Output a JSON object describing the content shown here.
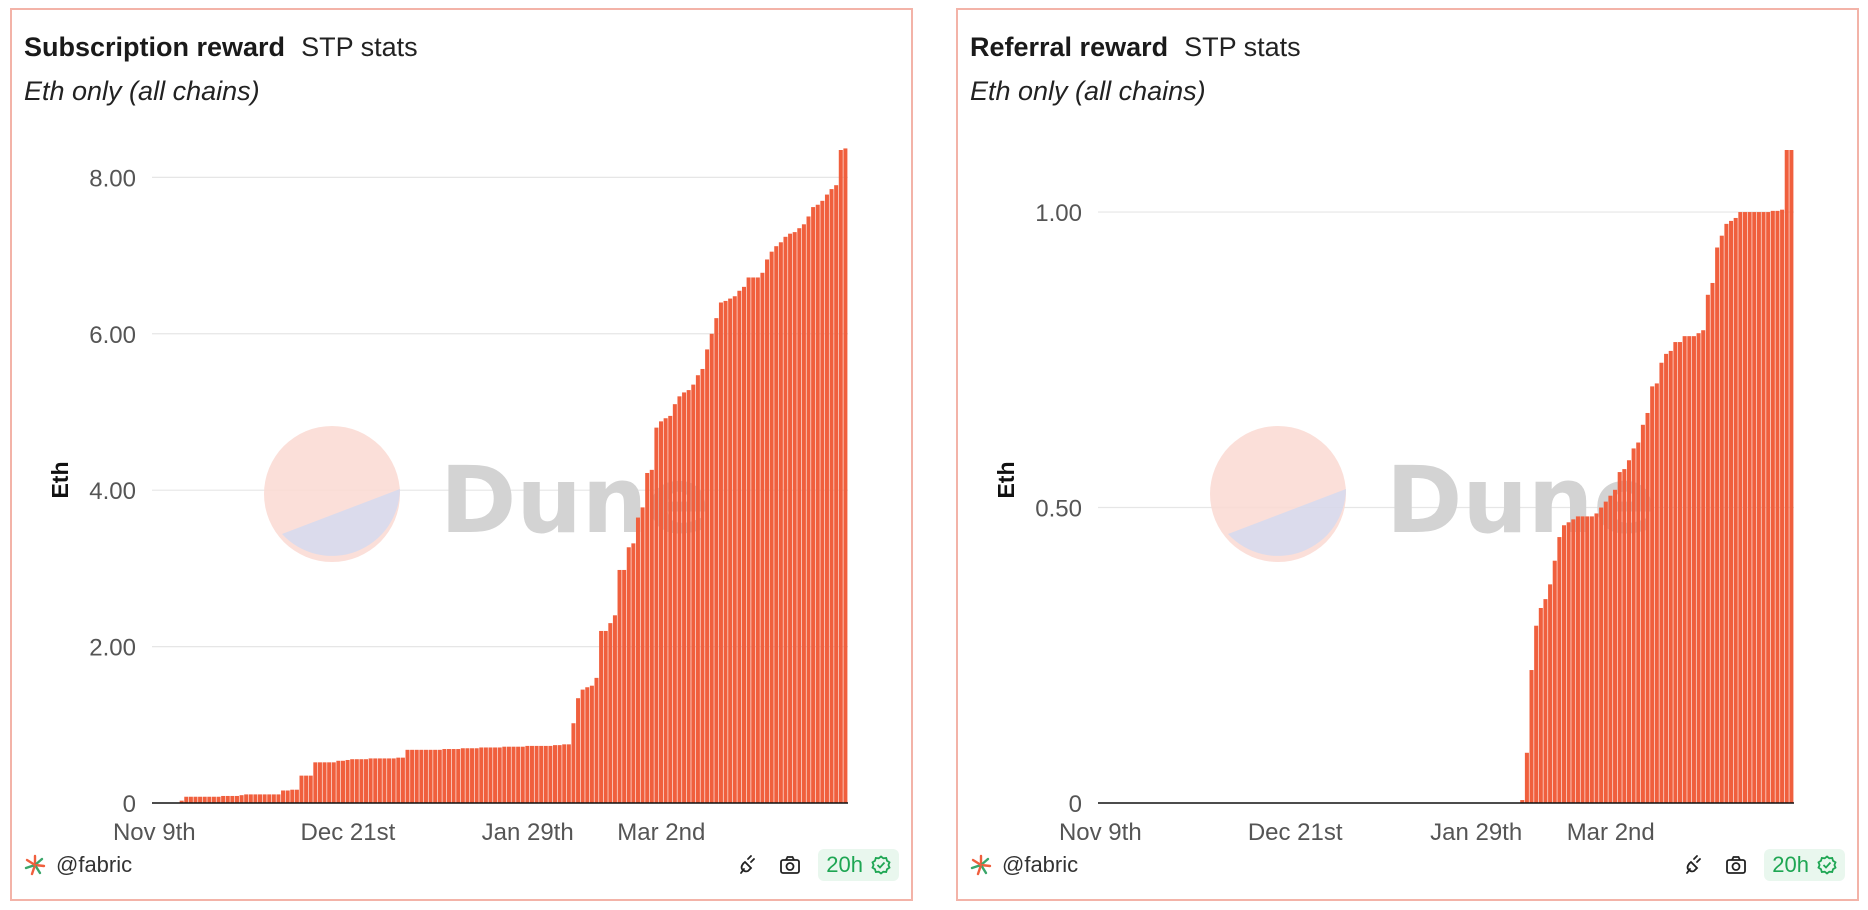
{
  "panels": [
    {
      "title": "Subscription reward",
      "query_name": "STP stats",
      "subtitle": "Eth only (all chains)",
      "author": "@fabric",
      "refresh": "20h",
      "watermark": "Dune"
    },
    {
      "title": "Referral reward",
      "query_name": "STP stats",
      "subtitle": "Eth only (all chains)",
      "author": "@fabric",
      "refresh": "20h",
      "watermark": "Dune"
    }
  ],
  "colors": {
    "bar": "#f05f3d",
    "border": "#f3b3a8",
    "badge_text": "#1ea653",
    "badge_bg": "#e9f7ee"
  },
  "chart_data": [
    {
      "type": "bar",
      "title": "Subscription reward",
      "ylabel": "Eth",
      "ylim": [
        0,
        8.35
      ],
      "yticks": [
        0,
        2,
        4,
        6,
        8
      ],
      "ytick_labels": [
        "0",
        "2.00",
        "4.00",
        "6.00",
        "8.00"
      ],
      "xtick_labels": [
        "Nov 9th",
        "Dec 21st",
        "Jan 29th",
        "Mar 2nd"
      ],
      "xtick_index": [
        0,
        42,
        81,
        110
      ],
      "grid": true,
      "values": [
        0.0,
        0.0,
        0.0,
        0.0,
        0.0,
        0.0,
        0.03,
        0.08,
        0.08,
        0.08,
        0.08,
        0.08,
        0.08,
        0.08,
        0.08,
        0.09,
        0.09,
        0.09,
        0.09,
        0.1,
        0.11,
        0.11,
        0.11,
        0.11,
        0.11,
        0.11,
        0.11,
        0.11,
        0.16,
        0.16,
        0.17,
        0.17,
        0.35,
        0.35,
        0.35,
        0.52,
        0.52,
        0.52,
        0.52,
        0.52,
        0.54,
        0.54,
        0.55,
        0.56,
        0.56,
        0.56,
        0.56,
        0.57,
        0.57,
        0.57,
        0.57,
        0.57,
        0.57,
        0.58,
        0.58,
        0.68,
        0.68,
        0.68,
        0.68,
        0.68,
        0.68,
        0.68,
        0.68,
        0.69,
        0.69,
        0.69,
        0.69,
        0.7,
        0.7,
        0.7,
        0.7,
        0.71,
        0.71,
        0.71,
        0.71,
        0.71,
        0.72,
        0.72,
        0.72,
        0.72,
        0.72,
        0.73,
        0.73,
        0.73,
        0.73,
        0.73,
        0.73,
        0.74,
        0.74,
        0.75,
        0.75,
        1.02,
        1.34,
        1.45,
        1.48,
        1.5,
        1.6,
        2.2,
        2.2,
        2.3,
        2.4,
        2.98,
        2.98,
        3.27,
        3.32,
        3.65,
        3.78,
        4.22,
        4.26,
        4.8,
        4.88,
        4.92,
        4.95,
        5.1,
        5.2,
        5.25,
        5.28,
        5.35,
        5.47,
        5.55,
        5.8,
        6.0,
        6.2,
        6.4,
        6.42,
        6.45,
        6.48,
        6.55,
        6.6,
        6.72,
        6.72,
        6.72,
        6.78,
        6.95,
        7.05,
        7.12,
        7.17,
        7.24,
        7.28,
        7.3,
        7.35,
        7.4,
        7.5,
        7.62,
        7.65,
        7.7,
        7.78,
        7.85,
        7.9,
        8.35,
        8.37
      ]
    },
    {
      "type": "bar",
      "title": "Referral reward",
      "ylabel": "Eth",
      "ylim": [
        0,
        1.105
      ],
      "yticks": [
        0,
        0.5,
        1.0
      ],
      "ytick_labels": [
        "0",
        "0.50",
        "1.00"
      ],
      "xtick_labels": [
        "Nov 9th",
        "Dec 21st",
        "Jan 29th",
        "Mar 2nd"
      ],
      "xtick_index": [
        0,
        42,
        81,
        110
      ],
      "grid": true,
      "values": [
        0.0,
        0.0,
        0.0,
        0.0,
        0.0,
        0.0,
        0.0,
        0.0,
        0.0,
        0.0,
        0.0,
        0.0,
        0.0,
        0.0,
        0.0,
        0.0,
        0.0,
        0.0,
        0.0,
        0.0,
        0.0,
        0.0,
        0.0,
        0.0,
        0.0,
        0.0,
        0.0,
        0.0,
        0.0,
        0.0,
        0.0,
        0.0,
        0.0,
        0.0,
        0.0,
        0.0,
        0.0,
        0.0,
        0.0,
        0.0,
        0.0,
        0.0,
        0.0,
        0.0,
        0.0,
        0.0,
        0.0,
        0.0,
        0.0,
        0.0,
        0.0,
        0.0,
        0.0,
        0.0,
        0.0,
        0.0,
        0.0,
        0.0,
        0.0,
        0.0,
        0.0,
        0.0,
        0.0,
        0.0,
        0.0,
        0.0,
        0.0,
        0.0,
        0.0,
        0.0,
        0.0,
        0.0,
        0.0,
        0.0,
        0.0,
        0.0,
        0.0,
        0.0,
        0.0,
        0.0,
        0.0,
        0.0,
        0.0,
        0.0,
        0.0,
        0.0,
        0.0,
        0.0,
        0.0,
        0.0,
        0.0,
        0.005,
        0.085,
        0.225,
        0.3,
        0.33,
        0.345,
        0.37,
        0.41,
        0.45,
        0.47,
        0.475,
        0.48,
        0.485,
        0.485,
        0.485,
        0.485,
        0.49,
        0.5,
        0.51,
        0.52,
        0.53,
        0.56,
        0.565,
        0.58,
        0.6,
        0.61,
        0.64,
        0.66,
        0.705,
        0.71,
        0.745,
        0.76,
        0.765,
        0.78,
        0.78,
        0.79,
        0.79,
        0.79,
        0.795,
        0.8,
        0.86,
        0.88,
        0.94,
        0.96,
        0.98,
        0.985,
        0.99,
        1.0,
        1.0,
        1.0,
        1.0,
        1.0,
        1.0,
        1.0,
        1.002,
        1.002,
        1.004,
        1.105,
        1.105
      ]
    }
  ]
}
